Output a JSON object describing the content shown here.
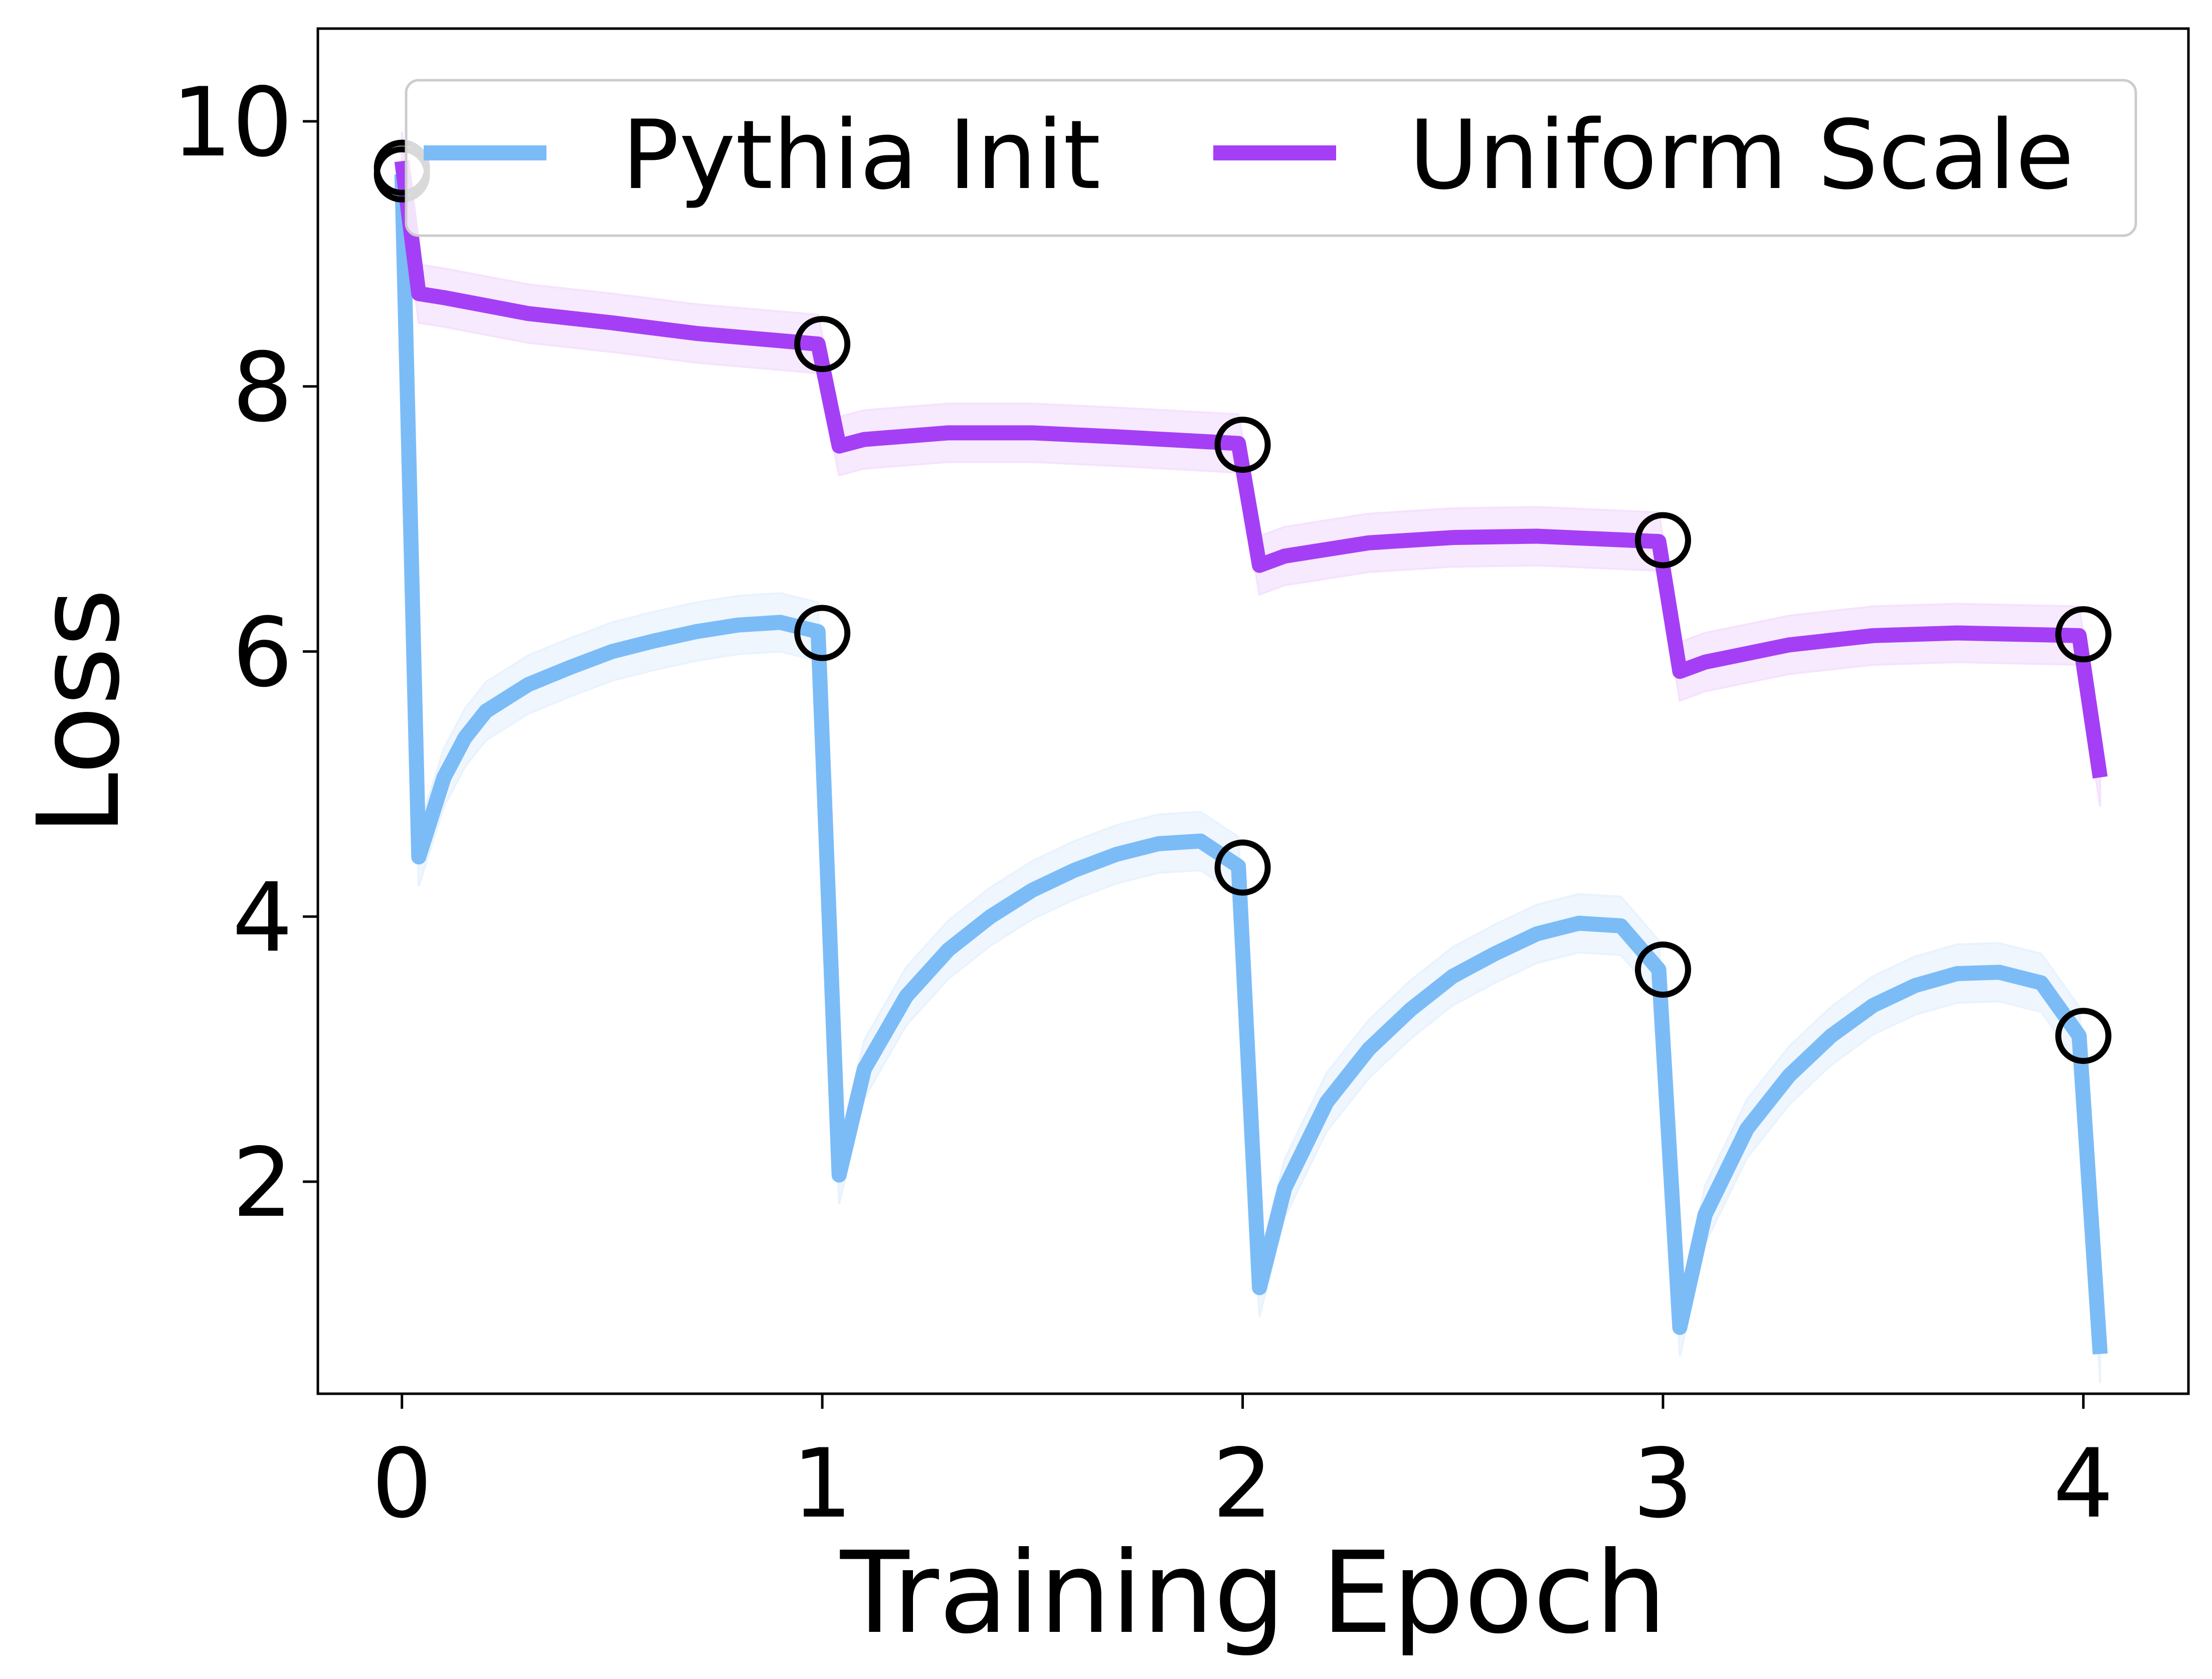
{
  "chart_data": {
    "type": "line",
    "title": "",
    "xlabel": "Training Epoch",
    "ylabel": "Loss",
    "xlim": [
      -0.2,
      4.25
    ],
    "ylim": [
      0.4,
      10.7
    ],
    "xticks": [
      0,
      1,
      2,
      3,
      4
    ],
    "xtick_labels": [
      "0",
      "1",
      "2",
      "3",
      "4"
    ],
    "yticks": [
      2,
      4,
      6,
      8,
      10
    ],
    "ytick_labels": [
      "2",
      "4",
      "6",
      "8",
      "10"
    ],
    "grid": false,
    "legend_position": "top",
    "legend_columns": 2,
    "series": [
      {
        "name": "Pythia Init",
        "color": "#7bbcf7",
        "band_color": "#e9f3fd",
        "band_halfwidth": 0.22,
        "points": [
          [
            0.0,
            9.6
          ],
          [
            0.04,
            4.45
          ],
          [
            0.1,
            5.05
          ],
          [
            0.15,
            5.35
          ],
          [
            0.2,
            5.55
          ],
          [
            0.3,
            5.75
          ],
          [
            0.4,
            5.88
          ],
          [
            0.5,
            6.0
          ],
          [
            0.6,
            6.08
          ],
          [
            0.7,
            6.15
          ],
          [
            0.8,
            6.2
          ],
          [
            0.9,
            6.22
          ],
          [
            0.99,
            6.15
          ],
          [
            1.04,
            2.05
          ],
          [
            1.1,
            2.85
          ],
          [
            1.2,
            3.4
          ],
          [
            1.3,
            3.75
          ],
          [
            1.4,
            4.0
          ],
          [
            1.5,
            4.2
          ],
          [
            1.6,
            4.35
          ],
          [
            1.7,
            4.47
          ],
          [
            1.8,
            4.55
          ],
          [
            1.9,
            4.57
          ],
          [
            1.99,
            4.38
          ],
          [
            2.04,
            1.2
          ],
          [
            2.1,
            1.95
          ],
          [
            2.2,
            2.6
          ],
          [
            2.3,
            3.0
          ],
          [
            2.4,
            3.3
          ],
          [
            2.5,
            3.55
          ],
          [
            2.6,
            3.72
          ],
          [
            2.7,
            3.87
          ],
          [
            2.8,
            3.95
          ],
          [
            2.9,
            3.93
          ],
          [
            2.99,
            3.6
          ],
          [
            3.04,
            0.9
          ],
          [
            3.1,
            1.75
          ],
          [
            3.2,
            2.4
          ],
          [
            3.3,
            2.8
          ],
          [
            3.4,
            3.1
          ],
          [
            3.5,
            3.33
          ],
          [
            3.6,
            3.48
          ],
          [
            3.7,
            3.57
          ],
          [
            3.8,
            3.58
          ],
          [
            3.9,
            3.5
          ],
          [
            3.99,
            3.1
          ],
          [
            4.04,
            0.7
          ]
        ],
        "markers": [
          [
            0.0,
            9.6
          ],
          [
            1.0,
            6.14
          ],
          [
            2.0,
            4.37
          ],
          [
            3.0,
            3.6
          ],
          [
            4.0,
            3.1
          ]
        ]
      },
      {
        "name": "Uniform Scale",
        "color": "#a53ff5",
        "band_color": "#f4e3fd",
        "band_halfwidth": 0.22,
        "points": [
          [
            0.0,
            9.7
          ],
          [
            0.04,
            8.7
          ],
          [
            0.1,
            8.67
          ],
          [
            0.3,
            8.55
          ],
          [
            0.5,
            8.48
          ],
          [
            0.7,
            8.4
          ],
          [
            0.99,
            8.32
          ],
          [
            1.04,
            7.55
          ],
          [
            1.1,
            7.6
          ],
          [
            1.3,
            7.65
          ],
          [
            1.5,
            7.65
          ],
          [
            1.7,
            7.62
          ],
          [
            1.99,
            7.57
          ],
          [
            2.04,
            6.65
          ],
          [
            2.1,
            6.72
          ],
          [
            2.3,
            6.82
          ],
          [
            2.5,
            6.86
          ],
          [
            2.7,
            6.87
          ],
          [
            2.99,
            6.83
          ],
          [
            3.04,
            5.85
          ],
          [
            3.1,
            5.92
          ],
          [
            3.3,
            6.05
          ],
          [
            3.5,
            6.12
          ],
          [
            3.7,
            6.14
          ],
          [
            3.99,
            6.12
          ],
          [
            4.04,
            5.05
          ]
        ],
        "markers": [
          [
            0.0,
            9.65
          ],
          [
            1.0,
            8.32
          ],
          [
            2.0,
            7.56
          ],
          [
            3.0,
            6.84
          ],
          [
            4.0,
            6.13
          ]
        ]
      }
    ]
  }
}
